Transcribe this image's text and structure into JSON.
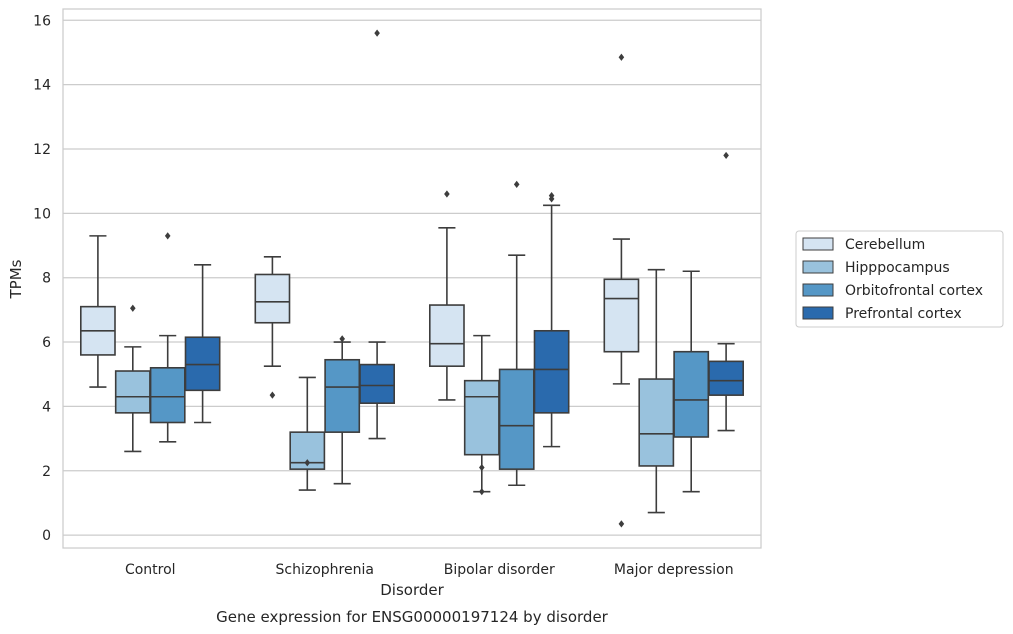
{
  "chart_data": {
    "type": "box",
    "title": "",
    "caption": "Gene expression for ENSG00000197124 by disorder",
    "xlabel": "Disorder",
    "ylabel": "TPMs",
    "ylim": [
      -0.4,
      16.35
    ],
    "yticks": [
      0,
      2,
      4,
      6,
      8,
      10,
      12,
      14,
      16
    ],
    "grid": "horizontal",
    "legend_position": "right",
    "categories": [
      "Control",
      "Schizophrenia",
      "Bipolar disorder",
      "Major depression"
    ],
    "series": [
      {
        "name": "Cerebellum",
        "color": "#d5e4f2",
        "boxes": [
          {
            "whisker_low": 4.6,
            "q1": 5.6,
            "median": 6.35,
            "q3": 7.1,
            "whisker_high": 9.3,
            "outliers": []
          },
          {
            "whisker_low": 5.25,
            "q1": 6.6,
            "median": 7.25,
            "q3": 8.1,
            "whisker_high": 8.65,
            "outliers": [
              4.35
            ]
          },
          {
            "whisker_low": 4.2,
            "q1": 5.25,
            "median": 5.95,
            "q3": 7.15,
            "whisker_high": 9.55,
            "outliers": [
              10.6
            ]
          },
          {
            "whisker_low": 4.7,
            "q1": 5.7,
            "median": 7.35,
            "q3": 7.95,
            "whisker_high": 9.2,
            "outliers": [
              14.85,
              0.35
            ]
          }
        ]
      },
      {
        "name": "Hipppocampus",
        "color": "#99c2dd",
        "boxes": [
          {
            "whisker_low": 2.6,
            "q1": 3.8,
            "median": 4.3,
            "q3": 5.1,
            "whisker_high": 5.85,
            "outliers": [
              7.05
            ]
          },
          {
            "whisker_low": 1.4,
            "q1": 2.05,
            "median": 2.25,
            "q3": 3.2,
            "whisker_high": 4.9,
            "outliers": [
              2.25
            ]
          },
          {
            "whisker_low": 1.35,
            "q1": 2.5,
            "median": 4.3,
            "q3": 4.8,
            "whisker_high": 6.2,
            "outliers": [
              2.1,
              1.35
            ]
          },
          {
            "whisker_low": 0.7,
            "q1": 2.15,
            "median": 3.15,
            "q3": 4.85,
            "whisker_high": 8.25,
            "outliers": []
          }
        ]
      },
      {
        "name": "Orbitofrontal cortex",
        "color": "#5597c6",
        "boxes": [
          {
            "whisker_low": 2.9,
            "q1": 3.5,
            "median": 4.3,
            "q3": 5.2,
            "whisker_high": 6.2,
            "outliers": [
              9.3
            ]
          },
          {
            "whisker_low": 1.6,
            "q1": 3.2,
            "median": 4.6,
            "q3": 5.45,
            "whisker_high": 6.0,
            "outliers": [
              6.1
            ]
          },
          {
            "whisker_low": 1.55,
            "q1": 2.05,
            "median": 3.4,
            "q3": 5.15,
            "whisker_high": 8.7,
            "outliers": [
              10.9
            ]
          },
          {
            "whisker_low": 1.35,
            "q1": 3.05,
            "median": 4.2,
            "q3": 5.7,
            "whisker_high": 8.2,
            "outliers": []
          }
        ]
      },
      {
        "name": "Prefrontal cortex",
        "color": "#2a6aad",
        "boxes": [
          {
            "whisker_low": 3.5,
            "q1": 4.5,
            "median": 5.3,
            "q3": 6.15,
            "whisker_high": 8.4,
            "outliers": []
          },
          {
            "whisker_low": 3.0,
            "q1": 4.1,
            "median": 4.65,
            "q3": 5.3,
            "whisker_high": 6.0,
            "outliers": [
              15.6
            ]
          },
          {
            "whisker_low": 2.75,
            "q1": 3.8,
            "median": 5.15,
            "q3": 6.35,
            "whisker_high": 10.25,
            "outliers": [
              10.55,
              10.45
            ]
          },
          {
            "whisker_low": 3.25,
            "q1": 4.35,
            "median": 4.8,
            "q3": 5.4,
            "whisker_high": 5.95,
            "outliers": [
              11.8
            ]
          }
        ]
      }
    ]
  }
}
